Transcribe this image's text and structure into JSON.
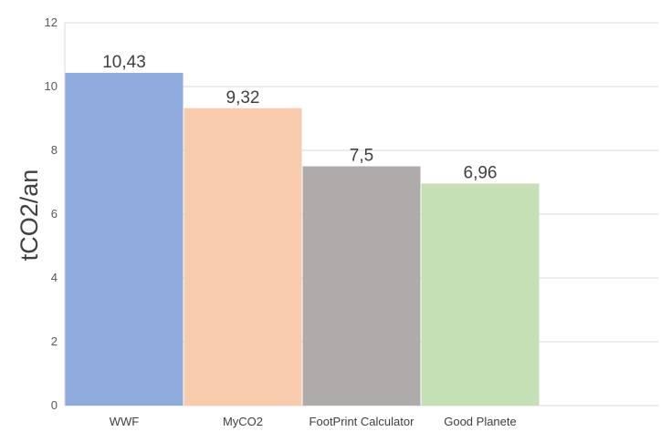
{
  "chart_data": {
    "type": "bar",
    "categories": [
      "WWF",
      "MyCO2",
      "FootPrint Calculator",
      "Good Planete"
    ],
    "values": [
      10.43,
      9.32,
      7.5,
      6.96
    ],
    "data_labels": [
      "10,43",
      "9,32",
      "7,5",
      "6,96"
    ],
    "colors": [
      "#8faadc",
      "#f8cbad",
      "#afabab",
      "#c5e0b4"
    ],
    "ylabel": "tCO2/an",
    "xlabel": "",
    "ylim": [
      0,
      12
    ],
    "yticks": [
      0,
      2,
      4,
      6,
      8,
      10,
      12
    ],
    "grid": true,
    "legend": "none",
    "gridline_color": "#d9d9d9"
  }
}
